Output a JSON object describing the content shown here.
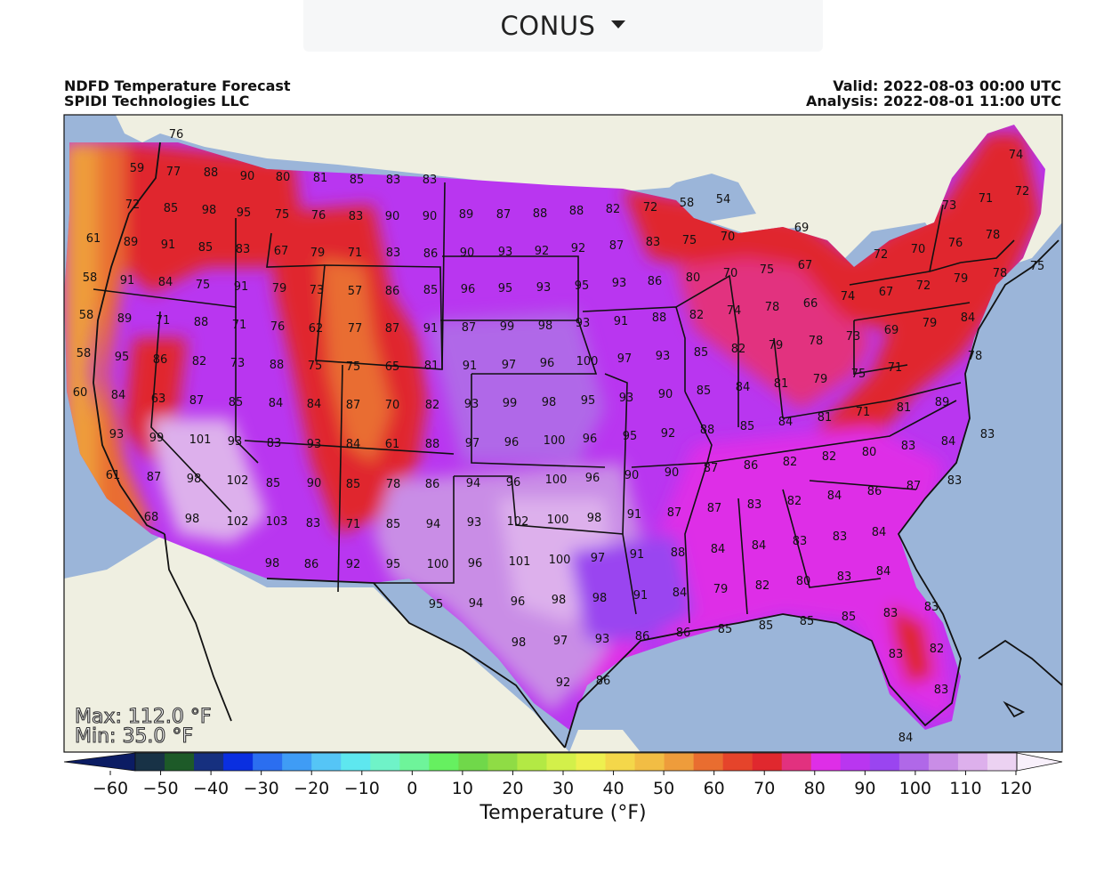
{
  "region_select": {
    "value": "CONUS",
    "icon": "chevron-down-icon"
  },
  "header": {
    "title": "NDFD Temperature Forecast",
    "source": "SPIDI Technologies LLC",
    "valid": "Valid: 2022-08-03 00:00 UTC",
    "analysis": "Analysis: 2022-08-01 11:00 UTC"
  },
  "stats": {
    "max": "Max: 112.0 °F",
    "min": "Min: 35.0 °F"
  },
  "colorbar": {
    "label": "Temperature (°F)",
    "ticks": [
      "−60",
      "−50",
      "−40",
      "−30",
      "−20",
      "−10",
      "0",
      "10",
      "20",
      "30",
      "40",
      "50",
      "60",
      "70",
      "80",
      "90",
      "100",
      "110",
      "120"
    ],
    "colors": [
      "#0b1c63",
      "#183246",
      "#1d5a28",
      "#16307f",
      "#0a2fe0",
      "#2b6ef0",
      "#3f9cf5",
      "#55c5f6",
      "#5ee7ef",
      "#6ff3c8",
      "#6ef49a",
      "#66f060",
      "#70d84a",
      "#8fdc45",
      "#b3e944",
      "#d3f04a",
      "#eef04f",
      "#f4d74a",
      "#f2bd44",
      "#ee9c3b",
      "#e96d30",
      "#e5442b",
      "#e0282e",
      "#e2317f",
      "#de2ee7",
      "#b936f0",
      "#9a45f0",
      "#b068e8",
      "#c98de6",
      "#ddb0ec",
      "#ecd2f2",
      "#f8f0fb"
    ]
  },
  "map_labels": [
    [
      "76",
      198,
      150
    ],
    [
      "59",
      154,
      188
    ],
    [
      "77",
      195,
      192
    ],
    [
      "88",
      237,
      193
    ],
    [
      "90",
      278,
      197
    ],
    [
      "80",
      318,
      198
    ],
    [
      "81",
      360,
      199
    ],
    [
      "85",
      401,
      201
    ],
    [
      "83",
      442,
      201
    ],
    [
      "83",
      483,
      201
    ],
    [
      "72",
      149,
      229
    ],
    [
      "85",
      192,
      233
    ],
    [
      "98",
      235,
      235
    ],
    [
      "95",
      274,
      238
    ],
    [
      "75",
      317,
      240
    ],
    [
      "76",
      358,
      241
    ],
    [
      "83",
      400,
      242
    ],
    [
      "90",
      441,
      242
    ],
    [
      "90",
      483,
      242
    ],
    [
      "89",
      524,
      240
    ],
    [
      "87",
      566,
      240
    ],
    [
      "88",
      607,
      239
    ],
    [
      "88",
      648,
      236
    ],
    [
      "82",
      689,
      234
    ],
    [
      "72",
      731,
      232
    ],
    [
      "58",
      772,
      227
    ],
    [
      "54",
      813,
      223
    ],
    [
      "71",
      1108,
      222
    ],
    [
      "72",
      1149,
      214
    ],
    [
      "74",
      1142,
      173
    ],
    [
      "61",
      105,
      267
    ],
    [
      "89",
      147,
      271
    ],
    [
      "91",
      189,
      274
    ],
    [
      "85",
      231,
      277
    ],
    [
      "83",
      273,
      279
    ],
    [
      "67",
      316,
      281
    ],
    [
      "79",
      357,
      283
    ],
    [
      "71",
      399,
      283
    ],
    [
      "83",
      442,
      283
    ],
    [
      "86",
      484,
      284
    ],
    [
      "90",
      525,
      283
    ],
    [
      "93",
      568,
      282
    ],
    [
      "92",
      609,
      281
    ],
    [
      "92",
      650,
      278
    ],
    [
      "87",
      693,
      275
    ],
    [
      "83",
      734,
      271
    ],
    [
      "75",
      775,
      269
    ],
    [
      "70",
      818,
      265
    ],
    [
      "69",
      901,
      255
    ],
    [
      "72",
      990,
      285
    ],
    [
      "70",
      1032,
      279
    ],
    [
      "76",
      1074,
      272
    ],
    [
      "78",
      1116,
      263
    ],
    [
      "73",
      1067,
      230
    ],
    [
      "58",
      101,
      311
    ],
    [
      "91",
      143,
      314
    ],
    [
      "84",
      186,
      316
    ],
    [
      "75",
      228,
      319
    ],
    [
      "91",
      271,
      321
    ],
    [
      "79",
      314,
      323
    ],
    [
      "73",
      356,
      325
    ],
    [
      "57",
      399,
      326
    ],
    [
      "86",
      441,
      326
    ],
    [
      "85",
      484,
      325
    ],
    [
      "96",
      526,
      324
    ],
    [
      "95",
      568,
      323
    ],
    [
      "93",
      611,
      322
    ],
    [
      "95",
      654,
      320
    ],
    [
      "93",
      696,
      317
    ],
    [
      "86",
      736,
      315
    ],
    [
      "80",
      779,
      311
    ],
    [
      "70",
      821,
      306
    ],
    [
      "75",
      862,
      302
    ],
    [
      "67",
      905,
      297
    ],
    [
      "67",
      996,
      327
    ],
    [
      "72",
      1038,
      320
    ],
    [
      "79",
      1080,
      312
    ],
    [
      "78",
      1124,
      306
    ],
    [
      "75",
      1166,
      298
    ],
    [
      "58",
      97,
      353
    ],
    [
      "89",
      140,
      357
    ],
    [
      "71",
      183,
      359
    ],
    [
      "88",
      226,
      361
    ],
    [
      "71",
      269,
      364
    ],
    [
      "76",
      312,
      366
    ],
    [
      "62",
      355,
      368
    ],
    [
      "77",
      399,
      368
    ],
    [
      "87",
      441,
      368
    ],
    [
      "91",
      484,
      368
    ],
    [
      "87",
      527,
      367
    ],
    [
      "99",
      570,
      366
    ],
    [
      "98",
      613,
      365
    ],
    [
      "93",
      655,
      362
    ],
    [
      "91",
      698,
      360
    ],
    [
      "88",
      741,
      356
    ],
    [
      "82",
      783,
      353
    ],
    [
      "74",
      825,
      348
    ],
    [
      "78",
      868,
      344
    ],
    [
      "66",
      911,
      340
    ],
    [
      "74",
      953,
      332
    ],
    [
      "69",
      1002,
      370
    ],
    [
      "79",
      1045,
      362
    ],
    [
      "84",
      1088,
      356
    ],
    [
      "58",
      94,
      396
    ],
    [
      "95",
      137,
      400
    ],
    [
      "86",
      180,
      403
    ],
    [
      "82",
      224,
      405
    ],
    [
      "73",
      267,
      407
    ],
    [
      "88",
      311,
      409
    ],
    [
      "75",
      354,
      410
    ],
    [
      "75",
      397,
      411
    ],
    [
      "65",
      441,
      411
    ],
    [
      "81",
      485,
      410
    ],
    [
      "91",
      528,
      410
    ],
    [
      "97",
      572,
      409
    ],
    [
      "96",
      615,
      407
    ],
    [
      "100",
      660,
      405
    ],
    [
      "97",
      702,
      402
    ],
    [
      "93",
      745,
      399
    ],
    [
      "85",
      788,
      395
    ],
    [
      "82",
      830,
      391
    ],
    [
      "79",
      872,
      387
    ],
    [
      "78",
      917,
      382
    ],
    [
      "73",
      959,
      377
    ],
    [
      "71",
      1006,
      412
    ],
    [
      "78",
      1096,
      399
    ],
    [
      "60",
      90,
      440
    ],
    [
      "84",
      133,
      443
    ],
    [
      "63",
      178,
      447
    ],
    [
      "87",
      221,
      449
    ],
    [
      "85",
      265,
      451
    ],
    [
      "84",
      310,
      452
    ],
    [
      "84",
      353,
      453
    ],
    [
      "87",
      397,
      454
    ],
    [
      "70",
      441,
      454
    ],
    [
      "82",
      486,
      454
    ],
    [
      "93",
      530,
      453
    ],
    [
      "99",
      573,
      452
    ],
    [
      "98",
      617,
      451
    ],
    [
      "95",
      661,
      449
    ],
    [
      "93",
      704,
      446
    ],
    [
      "90",
      748,
      442
    ],
    [
      "85",
      791,
      438
    ],
    [
      "84",
      835,
      434
    ],
    [
      "81",
      878,
      430
    ],
    [
      "79",
      922,
      425
    ],
    [
      "75",
      965,
      419
    ],
    [
      "71",
      970,
      462
    ],
    [
      "81",
      1016,
      457
    ],
    [
      "89",
      1059,
      451
    ],
    [
      "93",
      131,
      487
    ],
    [
      "99",
      176,
      491
    ],
    [
      "101",
      225,
      493
    ],
    [
      "93",
      264,
      495
    ],
    [
      "83",
      308,
      497
    ],
    [
      "93",
      353,
      498
    ],
    [
      "84",
      397,
      498
    ],
    [
      "61",
      441,
      498
    ],
    [
      "88",
      486,
      498
    ],
    [
      "97",
      531,
      497
    ],
    [
      "96",
      575,
      496
    ],
    [
      "100",
      623,
      494
    ],
    [
      "96",
      663,
      492
    ],
    [
      "95",
      708,
      489
    ],
    [
      "92",
      751,
      486
    ],
    [
      "88",
      795,
      482
    ],
    [
      "85",
      840,
      478
    ],
    [
      "84",
      883,
      473
    ],
    [
      "81",
      927,
      468
    ],
    [
      "80",
      977,
      507
    ],
    [
      "83",
      1021,
      500
    ],
    [
      "84",
      1066,
      495
    ],
    [
      "83",
      1110,
      487
    ],
    [
      "61",
      127,
      533
    ],
    [
      "87",
      173,
      535
    ],
    [
      "98",
      218,
      537
    ],
    [
      "102",
      267,
      539
    ],
    [
      "85",
      307,
      542
    ],
    [
      "90",
      353,
      542
    ],
    [
      "85",
      397,
      543
    ],
    [
      "78",
      442,
      543
    ],
    [
      "86",
      486,
      543
    ],
    [
      "94",
      532,
      542
    ],
    [
      "96",
      577,
      541
    ],
    [
      "100",
      625,
      538
    ],
    [
      "96",
      666,
      536
    ],
    [
      "90",
      710,
      533
    ],
    [
      "90",
      755,
      530
    ],
    [
      "87",
      799,
      525
    ],
    [
      "86",
      844,
      522
    ],
    [
      "82",
      888,
      518
    ],
    [
      "82",
      932,
      512
    ],
    [
      "86",
      983,
      551
    ],
    [
      "87",
      1027,
      545
    ],
    [
      "83",
      1073,
      539
    ],
    [
      "68",
      170,
      580
    ],
    [
      "98",
      216,
      582
    ],
    [
      "102",
      267,
      585
    ],
    [
      "103",
      311,
      585
    ],
    [
      "83",
      352,
      587
    ],
    [
      "71",
      397,
      588
    ],
    [
      "85",
      442,
      588
    ],
    [
      "94",
      487,
      588
    ],
    [
      "93",
      533,
      586
    ],
    [
      "102",
      582,
      585
    ],
    [
      "100",
      627,
      583
    ],
    [
      "98",
      668,
      581
    ],
    [
      "91",
      713,
      577
    ],
    [
      "87",
      758,
      575
    ],
    [
      "87",
      803,
      570
    ],
    [
      "83",
      848,
      566
    ],
    [
      "82",
      893,
      562
    ],
    [
      "84",
      938,
      556
    ],
    [
      "98",
      306,
      632
    ],
    [
      "86",
      350,
      633
    ],
    [
      "92",
      397,
      633
    ],
    [
      "95",
      442,
      633
    ],
    [
      "100",
      492,
      633
    ],
    [
      "96",
      534,
      632
    ],
    [
      "101",
      584,
      630
    ],
    [
      "100",
      629,
      628
    ],
    [
      "97",
      672,
      626
    ],
    [
      "91",
      716,
      622
    ],
    [
      "88",
      762,
      620
    ],
    [
      "84",
      807,
      616
    ],
    [
      "84",
      853,
      612
    ],
    [
      "83",
      899,
      607
    ],
    [
      "83",
      944,
      602
    ],
    [
      "84",
      988,
      597
    ],
    [
      "95",
      490,
      678
    ],
    [
      "94",
      535,
      677
    ],
    [
      "96",
      582,
      675
    ],
    [
      "98",
      628,
      673
    ],
    [
      "98",
      674,
      671
    ],
    [
      "91",
      720,
      668
    ],
    [
      "84",
      764,
      665
    ],
    [
      "79",
      810,
      661
    ],
    [
      "82",
      857,
      657
    ],
    [
      "80",
      903,
      652
    ],
    [
      "83",
      949,
      647
    ],
    [
      "84",
      993,
      641
    ],
    [
      "98",
      583,
      721
    ],
    [
      "97",
      630,
      719
    ],
    [
      "93",
      677,
      717
    ],
    [
      "86",
      722,
      714
    ],
    [
      "86",
      768,
      710
    ],
    [
      "85",
      815,
      706
    ],
    [
      "85",
      861,
      702
    ],
    [
      "85",
      907,
      697
    ],
    [
      "85",
      954,
      692
    ],
    [
      "83",
      1001,
      688
    ],
    [
      "83",
      1047,
      681
    ],
    [
      "92",
      633,
      766
    ],
    [
      "86",
      678,
      764
    ],
    [
      "83",
      1007,
      734
    ],
    [
      "82",
      1053,
      728
    ],
    [
      "83",
      1058,
      774
    ],
    [
      "84",
      1018,
      828
    ]
  ]
}
